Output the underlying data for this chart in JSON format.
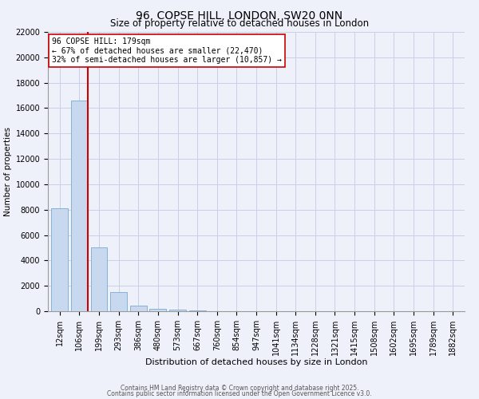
{
  "title": "96, COPSE HILL, LONDON, SW20 0NN",
  "subtitle": "Size of property relative to detached houses in London",
  "xlabel": "Distribution of detached houses by size in London",
  "ylabel": "Number of properties",
  "bar_color": "#c8d8ee",
  "bar_edge_color": "#7aaad0",
  "bin_labels": [
    "12sqm",
    "106sqm",
    "199sqm",
    "293sqm",
    "386sqm",
    "480sqm",
    "573sqm",
    "667sqm",
    "760sqm",
    "854sqm",
    "947sqm",
    "1041sqm",
    "1134sqm",
    "1228sqm",
    "1321sqm",
    "1415sqm",
    "1508sqm",
    "1602sqm",
    "1695sqm",
    "1789sqm",
    "1882sqm"
  ],
  "bar_heights": [
    8100,
    16600,
    5000,
    1500,
    420,
    220,
    100,
    50,
    30,
    20,
    15,
    10,
    8,
    6,
    5,
    4,
    3,
    3,
    2,
    2,
    1
  ],
  "annotation_line": "96 COPSE HILL: 179sqm",
  "annotation_line2": "← 67% of detached houses are smaller (22,470)",
  "annotation_line3": "32% of semi-detached houses are larger (10,857) →",
  "annotation_box_color": "white",
  "annotation_box_edge": "#cc0000",
  "red_line_color": "#cc0000",
  "ylim": [
    0,
    22000
  ],
  "yticks": [
    0,
    2000,
    4000,
    6000,
    8000,
    10000,
    12000,
    14000,
    16000,
    18000,
    20000,
    22000
  ],
  "footer1": "Contains HM Land Registry data © Crown copyright and database right 2025.",
  "footer2": "Contains public sector information licensed under the Open Government Licence v3.0.",
  "background_color": "#eef1fa",
  "grid_color": "#c8cfe8",
  "title_fontsize": 10,
  "subtitle_fontsize": 8.5,
  "xlabel_fontsize": 8,
  "ylabel_fontsize": 7.5,
  "tick_fontsize": 7,
  "footer_fontsize": 5.5,
  "annot_fontsize": 7
}
